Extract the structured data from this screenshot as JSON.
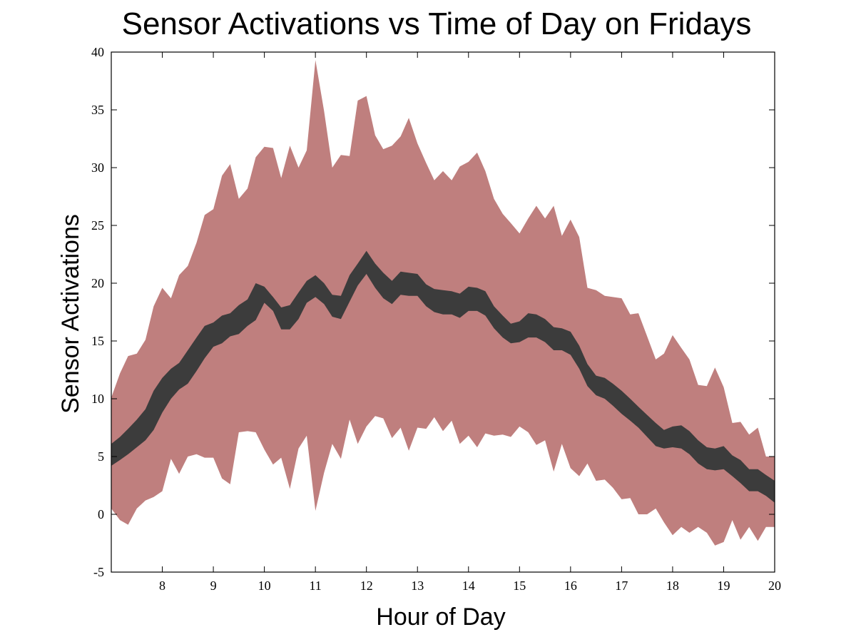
{
  "chart_data": {
    "type": "area",
    "title": "Sensor Activations vs Time of Day on Fridays",
    "xlabel": "Hour of Day",
    "ylabel": "Sensor Activations",
    "xlim": [
      7.0,
      20.0
    ],
    "ylim": [
      -5,
      40
    ],
    "xticks": [
      8,
      9,
      10,
      11,
      12,
      13,
      14,
      15,
      16,
      17,
      18,
      19,
      20
    ],
    "yticks": [
      -5,
      0,
      5,
      10,
      15,
      20,
      25,
      30,
      35,
      40
    ],
    "grid": false,
    "colors": {
      "outer_band": "#bf7f7e",
      "inner_band": "#3c3c3c",
      "frame": "#000000"
    },
    "x": [
      7.0,
      7.17,
      7.33,
      7.5,
      7.67,
      7.83,
      8.0,
      8.17,
      8.33,
      8.5,
      8.67,
      8.83,
      9.0,
      9.17,
      9.33,
      9.5,
      9.67,
      9.83,
      10.0,
      10.17,
      10.33,
      10.5,
      10.67,
      10.83,
      11.0,
      11.17,
      11.33,
      11.5,
      11.67,
      11.83,
      12.0,
      12.17,
      12.33,
      12.5,
      12.67,
      12.83,
      13.0,
      13.17,
      13.33,
      13.5,
      13.67,
      13.83,
      14.0,
      14.17,
      14.33,
      14.5,
      14.67,
      14.83,
      15.0,
      15.17,
      15.33,
      15.5,
      15.67,
      15.83,
      16.0,
      16.17,
      16.33,
      16.5,
      16.67,
      16.83,
      17.0,
      17.17,
      17.33,
      17.5,
      17.67,
      17.83,
      18.0,
      18.17,
      18.33,
      18.5,
      18.67,
      18.83,
      19.0,
      19.17,
      19.33,
      19.5,
      19.67,
      19.83,
      20.0
    ],
    "series": [
      {
        "band": "outer",
        "upper": [
          10.1,
          12.2,
          13.7,
          13.9,
          15.1,
          18.0,
          19.6,
          18.7,
          20.7,
          21.5,
          23.5,
          25.9,
          26.4,
          29.3,
          30.3,
          27.3,
          28.2,
          30.9,
          31.8,
          31.7,
          29.1,
          31.9,
          30.0,
          31.5,
          39.3,
          34.9,
          30.0,
          31.1,
          31.0,
          35.8,
          36.2,
          32.8,
          31.6,
          31.9,
          32.7,
          34.3,
          32.1,
          30.4,
          28.9,
          29.7,
          28.9,
          30.1,
          30.5,
          31.3,
          29.7,
          27.3,
          26.0,
          25.2,
          24.3,
          25.6,
          26.7,
          25.6,
          26.7,
          24.1,
          25.5,
          24.0,
          19.6,
          19.4,
          18.9,
          18.8,
          18.7,
          17.3,
          17.4,
          15.4,
          13.4,
          13.9,
          15.5,
          14.4,
          13.4,
          11.2,
          11.1,
          12.7,
          11.0,
          7.9,
          8.0,
          6.9,
          7.5,
          5.0,
          5.0
        ],
        "lower": [
          0.5,
          -0.5,
          -0.9,
          0.5,
          1.2,
          1.5,
          2.0,
          4.8,
          3.5,
          5.0,
          5.2,
          4.9,
          4.9,
          3.1,
          2.6,
          7.1,
          7.2,
          7.1,
          5.6,
          4.3,
          4.9,
          2.2,
          5.7,
          6.8,
          0.3,
          3.6,
          6.1,
          4.8,
          8.2,
          6.1,
          7.6,
          8.5,
          8.3,
          6.6,
          7.5,
          5.5,
          7.5,
          7.4,
          8.4,
          7.2,
          8.1,
          6.1,
          6.8,
          5.8,
          7.0,
          6.8,
          6.9,
          6.7,
          7.6,
          7.1,
          6.0,
          6.4,
          3.7,
          6.1,
          4.0,
          3.3,
          4.4,
          2.9,
          3.0,
          2.3,
          1.3,
          1.4,
          0.0,
          0.0,
          0.5,
          -0.7,
          -1.8,
          -1.1,
          -1.6,
          -1.1,
          -1.6,
          -2.7,
          -2.4,
          -0.5,
          -2.2,
          -1.1,
          -2.3,
          -1.1,
          -1.1
        ]
      },
      {
        "band": "inner",
        "upper": [
          6.1,
          6.7,
          7.4,
          8.2,
          9.1,
          10.7,
          11.8,
          12.6,
          13.1,
          14.2,
          15.3,
          16.3,
          16.6,
          17.2,
          17.4,
          18.1,
          18.6,
          20.0,
          19.7,
          18.8,
          17.9,
          18.1,
          19.2,
          20.2,
          20.7,
          20.0,
          19.0,
          18.9,
          20.7,
          21.7,
          22.8,
          21.7,
          20.9,
          20.2,
          21.0,
          20.9,
          20.8,
          19.9,
          19.5,
          19.4,
          19.3,
          19.1,
          19.7,
          19.6,
          19.3,
          18.0,
          17.2,
          16.5,
          16.7,
          17.4,
          17.3,
          16.9,
          16.2,
          16.1,
          15.8,
          14.6,
          13.0,
          12.0,
          11.8,
          11.3,
          10.7,
          10.0,
          9.3,
          8.6,
          7.9,
          7.3,
          7.6,
          7.7,
          7.2,
          6.4,
          5.8,
          5.7,
          5.9,
          5.1,
          4.7,
          3.9,
          3.9,
          3.4,
          2.9
        ],
        "lower": [
          4.2,
          4.7,
          5.2,
          5.8,
          6.4,
          7.3,
          8.8,
          10.0,
          10.8,
          11.3,
          12.4,
          13.5,
          14.5,
          14.8,
          15.4,
          15.6,
          16.3,
          16.8,
          18.3,
          17.6,
          16.0,
          16.0,
          16.9,
          18.3,
          18.8,
          18.2,
          17.1,
          16.9,
          18.4,
          19.8,
          20.8,
          19.6,
          18.7,
          18.2,
          19.0,
          18.9,
          18.9,
          18.0,
          17.5,
          17.3,
          17.3,
          17.0,
          17.6,
          17.6,
          17.2,
          16.1,
          15.3,
          14.8,
          14.9,
          15.3,
          15.3,
          14.9,
          14.2,
          14.2,
          13.8,
          12.6,
          11.1,
          10.3,
          10.0,
          9.4,
          8.7,
          8.1,
          7.5,
          6.7,
          5.9,
          5.7,
          5.8,
          5.7,
          5.2,
          4.4,
          3.9,
          3.8,
          3.9,
          3.3,
          2.7,
          2.0,
          2.0,
          1.6,
          1.0
        ]
      }
    ]
  }
}
